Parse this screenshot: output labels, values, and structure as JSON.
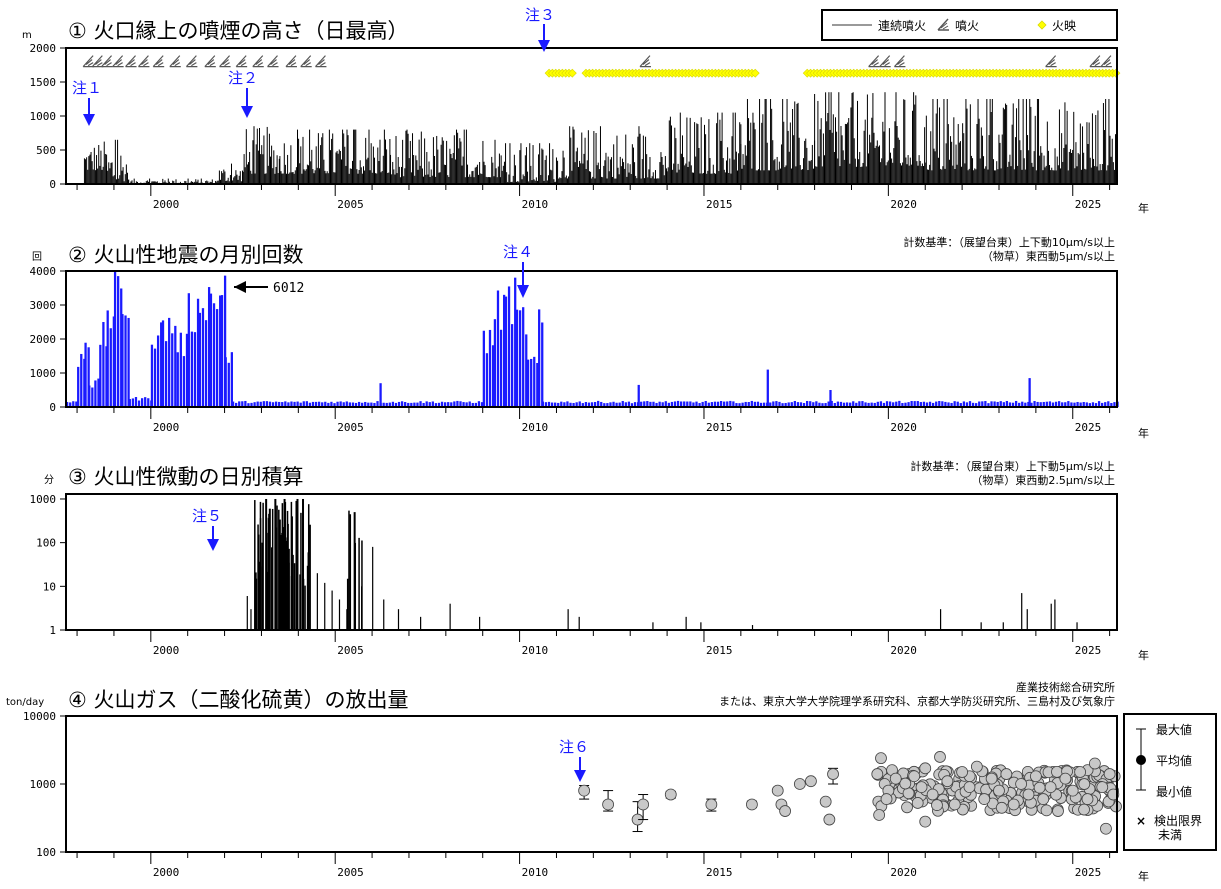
{
  "year_axis": {
    "suffix": "年",
    "labels": [
      "2000",
      "2005",
      "2010",
      "2015",
      "2020",
      "2025"
    ]
  },
  "panels": {
    "p1": {
      "unit": "m",
      "title": "① 火口縁上の噴煙の高さ（日最高）",
      "y_ticks": [
        "0",
        "500",
        "1000",
        "1500",
        "2000"
      ],
      "legend": {
        "continuous": "連続噴火",
        "eruption": "噴火",
        "glow": "火映"
      },
      "notes": [
        "注１",
        "注２",
        "注３"
      ]
    },
    "p2": {
      "unit": "回",
      "title": "② 火山性地震の月別回数",
      "y_ticks": [
        "0",
        "1000",
        "2000",
        "3000",
        "4000"
      ],
      "criteria": [
        "計数基準：（展望台東）上下動10μm/s以上",
        "（物草）東西動5μm/s以上"
      ],
      "callout": "6012",
      "notes": [
        "注４"
      ]
    },
    "p3": {
      "unit": "分",
      "title": "③ 火山性微動の日別積算",
      "y_ticks": [
        "1",
        "10",
        "100",
        "1000"
      ],
      "criteria": [
        "計数基準：（展望台東）上下動5μm/s以上",
        "（物草）東西動2.5μm/s以上"
      ],
      "notes": [
        "注５"
      ]
    },
    "p4": {
      "unit": "ton/day",
      "title": "④ 火山ガス（二酸化硫黄）の放出量",
      "y_ticks": [
        "100",
        "1000",
        "10000"
      ],
      "source": [
        "産業技術総合研究所",
        "または、東京大学大学院理学系研究科、京都大学防災研究所、三島村及び気象庁"
      ],
      "notes": [
        "注６"
      ],
      "legend": {
        "max": "最大値",
        "mean": "平均値",
        "min": "最小値",
        "below": [
          "検出限界",
          "未満"
        ]
      }
    }
  },
  "colors": {
    "bar_p1": "#000000",
    "bar_p2": "#1a1aff",
    "bar_p3": "#000000",
    "glow": "#ffff00",
    "note": "#1a1aff",
    "gas_fill": "#c8c8c8"
  },
  "chart_data": [
    {
      "type": "bar",
      "title": "① 火口縁上の噴煙の高さ（日最高）",
      "ylabel": "m",
      "xlim": [
        1997.7,
        2026.2
      ],
      "ylim": [
        0,
        2000
      ],
      "segments": [
        {
          "x": [
            1998.2,
            1998.8
          ],
          "base": 200,
          "peak": 650
        },
        {
          "x": [
            1998.8,
            1999.4
          ],
          "base": 40,
          "peak": 650
        },
        {
          "x": [
            1999.4,
            2001.8
          ],
          "base": 10,
          "peak": 80
        },
        {
          "x": [
            2001.8,
            2002.5
          ],
          "base": 40,
          "peak": 300
        },
        {
          "x": [
            2002.5,
            2003.5
          ],
          "base": 150,
          "peak": 850
        },
        {
          "x": [
            2003.5,
            2006.5
          ],
          "base": 150,
          "peak": 800
        },
        {
          "x": [
            2006.5,
            2009.5
          ],
          "base": 100,
          "peak": 800
        },
        {
          "x": [
            2009.5,
            2011.0
          ],
          "base": 30,
          "peak": 600
        },
        {
          "x": [
            2011.0,
            2014.0
          ],
          "base": 80,
          "peak": 850
        },
        {
          "x": [
            2014.0,
            2016.0
          ],
          "base": 150,
          "peak": 1050
        },
        {
          "x": [
            2016.0,
            2018.0
          ],
          "base": 200,
          "peak": 1250
        },
        {
          "x": [
            2018.0,
            2021.0
          ],
          "base": 250,
          "peak": 1350
        },
        {
          "x": [
            2021.0,
            2026.2
          ],
          "base": 200,
          "peak": 1250
        }
      ],
      "eruption_markers_x": [
        1998.3,
        1998.55,
        1998.8,
        1999.1,
        1999.45,
        1999.8,
        2000.2,
        2000.65,
        2001.1,
        2001.6,
        2002.0,
        2002.45,
        2002.9,
        2003.3,
        2003.8,
        2004.2,
        2004.6,
        2013.4,
        2019.6,
        2019.9,
        2020.3,
        2024.4,
        2025.6,
        2025.9
      ],
      "glow_ranges": [
        [
          2010.8,
          2011.5
        ],
        [
          2011.8,
          2016.4
        ],
        [
          2017.8,
          2026.2
        ]
      ]
    },
    {
      "type": "bar",
      "title": "② 火山性地震の月別回数",
      "ylabel": "回",
      "xlim": [
        1997.7,
        2026.2
      ],
      "ylim": [
        0,
        4000
      ],
      "annotations": [
        "6012"
      ],
      "months": [
        {
          "x": [
            1997.7,
            1998.0
          ],
          "v": 150
        },
        {
          "x": [
            1998.0,
            1998.2
          ],
          "v": 1500
        },
        {
          "x": [
            1998.2,
            1998.3
          ],
          "v": 2200
        },
        {
          "x": [
            1998.3,
            1998.6
          ],
          "v": 700
        },
        {
          "x": [
            1998.6,
            1998.8
          ],
          "v": 2100
        },
        {
          "x": [
            1998.8,
            1999.0
          ],
          "v": 2800
        },
        {
          "x": [
            1999.0,
            1999.2
          ],
          "v": 3350
        },
        {
          "x": [
            1999.2,
            1999.4
          ],
          "v": 3100
        },
        {
          "x": [
            1999.4,
            2000.0
          ],
          "v": 250
        },
        {
          "x": [
            2000.0,
            2000.3
          ],
          "v": 2200
        },
        {
          "x": [
            2000.3,
            2000.7
          ],
          "v": 2400
        },
        {
          "x": [
            2000.7,
            2001.0
          ],
          "v": 1900
        },
        {
          "x": [
            2001.0,
            2001.3
          ],
          "v": 2800
        },
        {
          "x": [
            2001.3,
            2001.6
          ],
          "v": 3350
        },
        {
          "x": [
            2001.6,
            2001.9
          ],
          "v": 3200
        },
        {
          "x": [
            2001.9,
            2002.0
          ],
          "v": 4000
        },
        {
          "x": [
            2002.0,
            2002.2
          ],
          "v": 1400
        },
        {
          "x": [
            2002.2,
            2009.0
          ],
          "v": 150
        },
        {
          "x": [
            2009.0,
            2009.3
          ],
          "v": 2000
        },
        {
          "x": [
            2009.3,
            2009.6
          ],
          "v": 2900
        },
        {
          "x": [
            2009.6,
            2009.9
          ],
          "v": 3200
        },
        {
          "x": [
            2009.9,
            2010.2
          ],
          "v": 2600
        },
        {
          "x": [
            2010.2,
            2010.5
          ],
          "v": 1300
        },
        {
          "x": [
            2010.5,
            2010.6
          ],
          "v": 2400
        },
        {
          "x": [
            2010.6,
            2026.2
          ],
          "v": 150
        }
      ],
      "spikes": [
        {
          "x": 2006.2,
          "v": 700
        },
        {
          "x": 2013.2,
          "v": 650
        },
        {
          "x": 2016.7,
          "v": 1100
        },
        {
          "x": 2018.4,
          "v": 500
        },
        {
          "x": 2023.8,
          "v": 850
        }
      ]
    },
    {
      "type": "bar",
      "title": "③ 火山性微動の日別積算",
      "ylabel": "分",
      "xlim": [
        1997.7,
        2026.2
      ],
      "ylim": [
        1,
        1000
      ],
      "yscale": "log",
      "days": [
        {
          "x": 2002.6,
          "v": 6
        },
        {
          "x": 2002.7,
          "v": 3
        },
        {
          "x": 2002.85,
          "v": 15
        },
        {
          "x": 2003.0,
          "v": 100
        },
        {
          "x": 2003.1,
          "v": 1000
        },
        {
          "x": 2003.2,
          "v": 600
        },
        {
          "x": 2003.35,
          "v": 1000
        },
        {
          "x": 2003.5,
          "v": 150
        },
        {
          "x": 2003.6,
          "v": 1000
        },
        {
          "x": 2003.8,
          "v": 400
        },
        {
          "x": 2003.95,
          "v": 1000
        },
        {
          "x": 2004.1,
          "v": 1000
        },
        {
          "x": 2004.25,
          "v": 60
        },
        {
          "x": 2004.5,
          "v": 20
        },
        {
          "x": 2004.7,
          "v": 12
        },
        {
          "x": 2004.9,
          "v": 8
        },
        {
          "x": 2005.1,
          "v": 5
        },
        {
          "x": 2005.3,
          "v": 3
        },
        {
          "x": 2005.5,
          "v": 500
        },
        {
          "x": 2005.7,
          "v": 10
        },
        {
          "x": 2006.0,
          "v": 80
        },
        {
          "x": 2006.3,
          "v": 5
        },
        {
          "x": 2006.7,
          "v": 3
        },
        {
          "x": 2007.3,
          "v": 2
        },
        {
          "x": 2008.1,
          "v": 4
        },
        {
          "x": 2008.9,
          "v": 2
        },
        {
          "x": 2011.3,
          "v": 3
        },
        {
          "x": 2011.6,
          "v": 2
        },
        {
          "x": 2013.6,
          "v": 1.5
        },
        {
          "x": 2014.5,
          "v": 2
        },
        {
          "x": 2014.9,
          "v": 1.5
        },
        {
          "x": 2016.3,
          "v": 1.3
        },
        {
          "x": 2021.4,
          "v": 3
        },
        {
          "x": 2022.5,
          "v": 1.5
        },
        {
          "x": 2023.1,
          "v": 1.5
        },
        {
          "x": 2023.6,
          "v": 7
        },
        {
          "x": 2023.75,
          "v": 3
        },
        {
          "x": 2024.4,
          "v": 4
        },
        {
          "x": 2024.5,
          "v": 5
        },
        {
          "x": 2025.1,
          "v": 1.5
        }
      ]
    },
    {
      "type": "scatter",
      "title": "④ 火山ガス（二酸化硫黄）の放出量",
      "ylabel": "ton/day",
      "xlim": [
        1997.7,
        2026.2
      ],
      "ylim": [
        100,
        10000
      ],
      "yscale": "log",
      "points_with_range": [
        {
          "x": 2011.75,
          "mean": 800,
          "min": 600,
          "max": 950
        },
        {
          "x": 2012.4,
          "mean": 500,
          "min": 400,
          "max": 800
        },
        {
          "x": 2013.2,
          "mean": 300,
          "min": 200,
          "max": 550
        },
        {
          "x": 2013.35,
          "mean": 500,
          "min": 300,
          "max": 700
        },
        {
          "x": 2014.1,
          "mean": 700,
          "min": 620,
          "max": 780
        },
        {
          "x": 2015.2,
          "mean": 500,
          "min": 400,
          "max": 600
        },
        {
          "x": 2016.3,
          "mean": 500,
          "min": 450,
          "max": 560
        },
        {
          "x": 2018.5,
          "mean": 1400,
          "min": 1000,
          "max": 1700
        }
      ],
      "points": [
        {
          "x": 2017.0,
          "y": 800
        },
        {
          "x": 2017.1,
          "y": 500
        },
        {
          "x": 2017.2,
          "y": 400
        },
        {
          "x": 2017.6,
          "y": 1000
        },
        {
          "x": 2017.9,
          "y": 1100
        },
        {
          "x": 2018.3,
          "y": 550
        },
        {
          "x": 2018.4,
          "y": 300
        },
        {
          "x": 2019.7,
          "y": 1400
        },
        {
          "x": 2019.8,
          "y": 2400
        },
        {
          "x": 2019.9,
          "y": 1000
        },
        {
          "x": 2020.0,
          "y": 800
        },
        {
          "x": 2020.1,
          "y": 1600
        },
        {
          "x": 2019.95,
          "y": 600
        },
        {
          "x": 2020.2,
          "y": 1200
        },
        {
          "x": 2019.75,
          "y": 350
        },
        {
          "x": 2020.7,
          "y": 1300
        },
        {
          "x": 2020.9,
          "y": 900
        },
        {
          "x": 2021.0,
          "y": 1700
        },
        {
          "x": 2021.2,
          "y": 700
        },
        {
          "x": 2021.4,
          "y": 2500
        },
        {
          "x": 2021.6,
          "y": 1100
        },
        {
          "x": 2021.8,
          "y": 500
        },
        {
          "x": 2021.0,
          "y": 280
        },
        {
          "x": 2022.0,
          "y": 1500
        },
        {
          "x": 2022.2,
          "y": 900
        },
        {
          "x": 2022.4,
          "y": 1800
        },
        {
          "x": 2022.6,
          "y": 600
        },
        {
          "x": 2022.8,
          "y": 1200
        },
        {
          "x": 2023.0,
          "y": 800
        },
        {
          "x": 2023.2,
          "y": 1400
        },
        {
          "x": 2023.4,
          "y": 500
        },
        {
          "x": 2023.6,
          "y": 1000
        },
        {
          "x": 2023.8,
          "y": 700
        },
        {
          "x": 2024.0,
          "y": 1300
        },
        {
          "x": 2024.2,
          "y": 600
        },
        {
          "x": 2024.4,
          "y": 900
        },
        {
          "x": 2024.6,
          "y": 400
        },
        {
          "x": 2024.8,
          "y": 1200
        },
        {
          "x": 2025.0,
          "y": 800
        },
        {
          "x": 2025.2,
          "y": 1500
        },
        {
          "x": 2025.4,
          "y": 600
        },
        {
          "x": 2025.6,
          "y": 2000
        },
        {
          "x": 2025.8,
          "y": 900
        },
        {
          "x": 2025.9,
          "y": 220
        },
        {
          "x": 2026.0,
          "y": 1400
        },
        {
          "x": 2026.1,
          "y": 700
        }
      ],
      "dense_band": {
        "x": [
          2019.7,
          2026.2
        ],
        "low": 400,
        "high": 1600,
        "count": 220
      }
    }
  ]
}
